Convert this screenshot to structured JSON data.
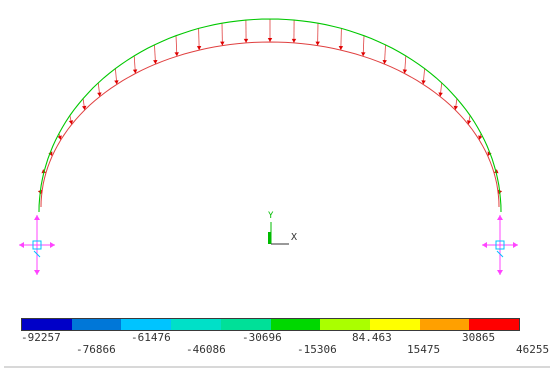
{
  "axis_triad": {
    "y_label": "Y",
    "x_label": "X"
  },
  "colors": {
    "deformed_shape": "#00c800",
    "undeformed_shape": "#e04040",
    "load_arrow": "#e00000",
    "support_symbol": "#ff44ff",
    "support_node": "#00c0ff",
    "triad_y": "#00bb00",
    "triad_x": "#333333"
  },
  "legend": {
    "bands": [
      {
        "color": "#0000c8"
      },
      {
        "color": "#0077d8"
      },
      {
        "color": "#00c4ff"
      },
      {
        "color": "#00e0c8"
      },
      {
        "color": "#00e098"
      },
      {
        "color": "#00d800"
      },
      {
        "color": "#aaff00"
      },
      {
        "color": "#ffff00"
      },
      {
        "color": "#ffa000"
      },
      {
        "color": "#ff0000"
      }
    ],
    "labels_upper": [
      "-92257",
      "-61476",
      "-30696",
      "84.463",
      "30865"
    ],
    "labels_lower": [
      "-76866",
      "-46086",
      "-15306",
      "15475",
      "46255"
    ]
  }
}
